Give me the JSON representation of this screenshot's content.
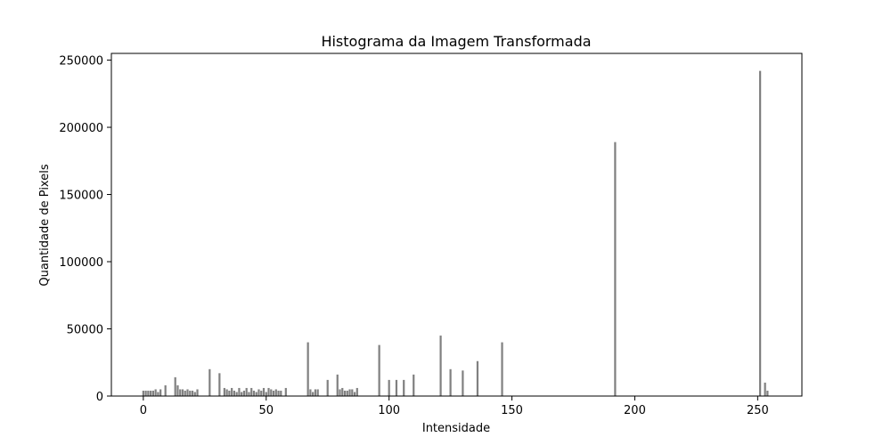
{
  "chart_data": {
    "type": "bar",
    "title": "Histograma da Imagem Transformada",
    "xlabel": "Intensidade",
    "ylabel": "Quantidade de Pixels",
    "xlim": [
      -13,
      268
    ],
    "ylim": [
      0,
      255000
    ],
    "xticks": [
      0,
      50,
      100,
      150,
      200,
      250
    ],
    "yticks": [
      0,
      50000,
      100000,
      150000,
      200000,
      250000
    ],
    "grid": false,
    "bar_color": "#808080",
    "x": [
      0,
      1,
      2,
      3,
      4,
      5,
      6,
      7,
      9,
      13,
      14,
      15,
      16,
      17,
      18,
      19,
      20,
      21,
      22,
      27,
      31,
      33,
      34,
      35,
      36,
      37,
      38,
      39,
      40,
      41,
      42,
      43,
      44,
      45,
      46,
      47,
      48,
      49,
      50,
      51,
      52,
      53,
      54,
      55,
      56,
      58,
      67,
      68,
      69,
      70,
      71,
      75,
      79,
      80,
      81,
      82,
      83,
      84,
      85,
      86,
      87,
      96,
      100,
      103,
      106,
      110,
      121,
      125,
      130,
      136,
      146,
      192,
      251,
      253,
      254
    ],
    "values": [
      4000,
      4000,
      4000,
      4000,
      4000,
      5000,
      3000,
      5000,
      8000,
      14000,
      8000,
      5000,
      5000,
      4000,
      5000,
      4000,
      4000,
      3000,
      5000,
      20000,
      17000,
      6000,
      5000,
      4000,
      6000,
      4000,
      3000,
      6000,
      3000,
      4000,
      6000,
      3000,
      6000,
      4000,
      3000,
      5000,
      4000,
      6000,
      3000,
      6000,
      5000,
      4000,
      5000,
      4000,
      4000,
      6000,
      40000,
      5000,
      3000,
      5000,
      5000,
      12000,
      16000,
      5000,
      6000,
      4000,
      4000,
      5000,
      5000,
      3000,
      6000,
      38000,
      12000,
      12000,
      12000,
      16000,
      45000,
      20000,
      19000,
      26000,
      40000,
      189000,
      242000,
      10000,
      4000
    ]
  }
}
